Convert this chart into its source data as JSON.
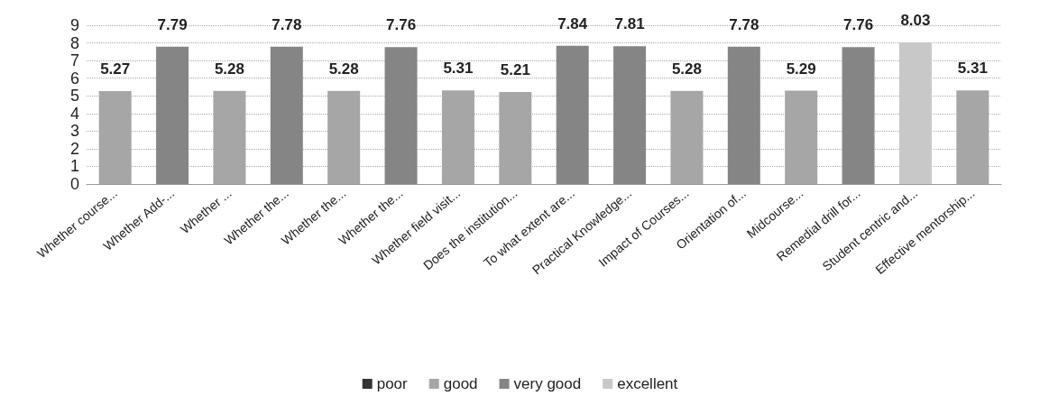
{
  "chart_data": {
    "type": "bar",
    "categories": [
      "Whether course...",
      "Whether Add-...",
      "Whether ...",
      "Whether the...",
      "Whether the...",
      "Whether the...",
      "Whether field visit...",
      "Does the institution...",
      "To what extent are...",
      "Practical Knowledge...",
      "Impact of Courses...",
      "Orientation of...",
      "Midcourse...",
      "Remedial drill for...",
      "Student centric and...",
      "Effective mentorship..."
    ],
    "series": [
      {
        "name": "poor",
        "color": "#333333",
        "values": [
          null,
          null,
          null,
          null,
          null,
          null,
          null,
          null,
          null,
          null,
          null,
          null,
          null,
          null,
          null,
          null
        ]
      },
      {
        "name": "good",
        "color": "#a6a6a6",
        "values": [
          5.27,
          null,
          5.28,
          null,
          5.28,
          null,
          5.31,
          5.21,
          null,
          null,
          5.28,
          null,
          5.29,
          null,
          null,
          5.31
        ]
      },
      {
        "name": "very good",
        "color": "#858585",
        "values": [
          null,
          7.79,
          null,
          7.78,
          null,
          7.76,
          null,
          null,
          7.84,
          7.81,
          null,
          7.78,
          null,
          7.76,
          null,
          null
        ]
      },
      {
        "name": "excellent",
        "color": "#c8c8c8",
        "values": [
          null,
          null,
          null,
          null,
          null,
          null,
          null,
          null,
          null,
          null,
          null,
          null,
          null,
          null,
          8.03,
          null
        ]
      }
    ],
    "stacked": true,
    "ylim": [
      0,
      9
    ],
    "yticks": [
      0,
      1,
      2,
      3,
      4,
      5,
      6,
      7,
      8,
      9
    ],
    "grid": "y",
    "legend": "bottom",
    "data_labels": true
  }
}
